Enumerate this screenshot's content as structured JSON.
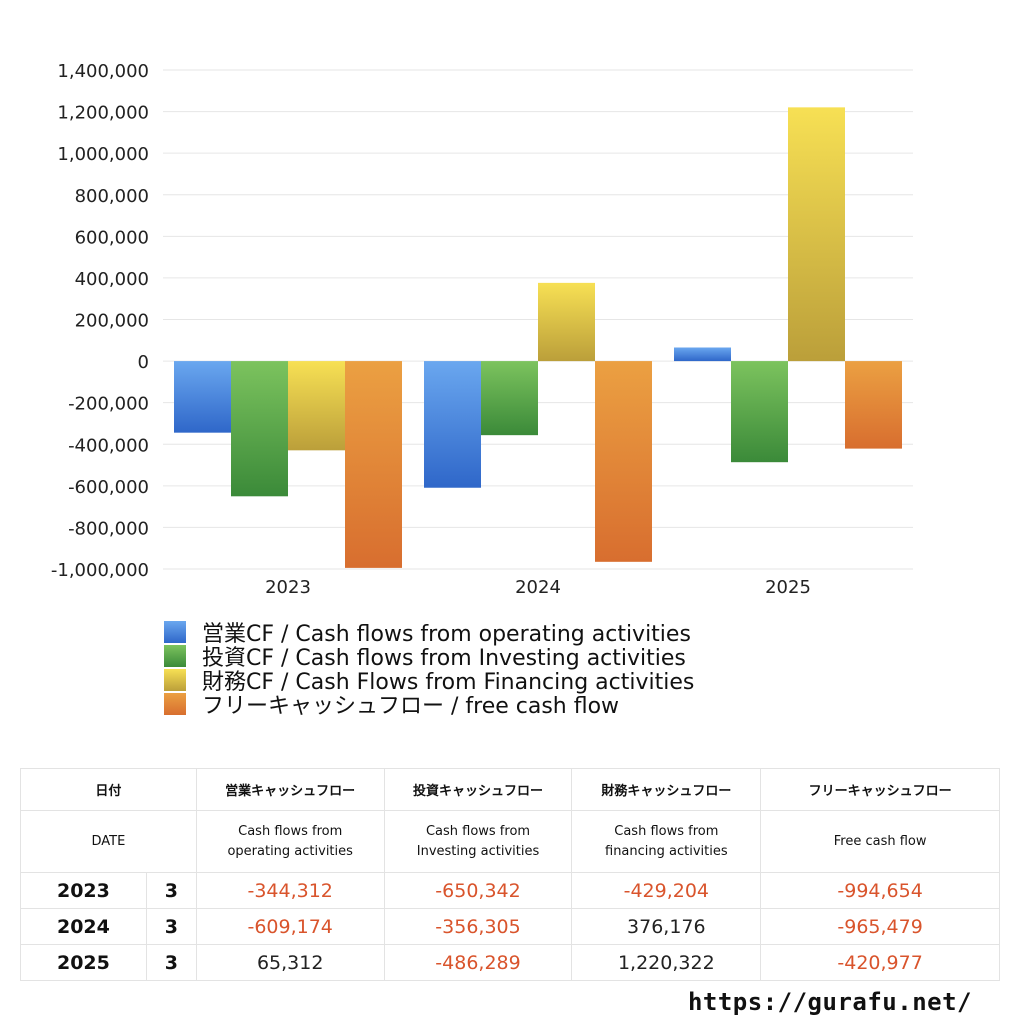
{
  "chart_data": {
    "type": "bar",
    "categories": [
      "2023",
      "2024",
      "2025"
    ],
    "series": [
      {
        "name": "営業CF / Cash flows from operating activities",
        "values": [
          -344312,
          -609174,
          65312
        ],
        "color_top": "#6aa7ef",
        "color_bottom": "#2f67c9"
      },
      {
        "name": "投資CF / Cash flows from Investing activities",
        "values": [
          -650342,
          -356305,
          -486289
        ],
        "color_top": "#7cc35e",
        "color_bottom": "#3b8a39"
      },
      {
        "name": "財務CF / Cash Flows from Financing activities",
        "values": [
          -429204,
          376176,
          1220322
        ],
        "color_top": "#f7e054",
        "color_bottom": "#bb9f3a"
      },
      {
        "name": "フリーキャッシュフロー / free cash flow",
        "values": [
          -994654,
          -965479,
          -420977
        ],
        "color_top": "#eba042",
        "color_bottom": "#d86e2f"
      }
    ],
    "ylim": [
      -1000000,
      1400000
    ],
    "yticks": [
      "1,400,000",
      "1,200,000",
      "1,000,000",
      "800,000",
      "600,000",
      "400,000",
      "200,000",
      "0",
      "-200,000",
      "-400,000",
      "-600,000",
      "-800,000",
      "-1,000,000"
    ],
    "ytick_values": [
      1400000,
      1200000,
      1000000,
      800000,
      600000,
      400000,
      200000,
      0,
      -200000,
      -400000,
      -600000,
      -800000,
      -1000000
    ],
    "grid": true,
    "legend_position": "bottom"
  },
  "table": {
    "header1": [
      "日付",
      "営業キャッシュフロー",
      "投資キャッシュフロー",
      "財務キャッシュフロー",
      "フリーキャッシュフロー"
    ],
    "header2": {
      "date": "DATE",
      "op_line1": "Cash flows from",
      "op_line2": "operating activities",
      "inv_line1": "Cash flows from",
      "inv_line2": "Investing activities",
      "fin_line1": "Cash flows from",
      "fin_line2": "financing activities",
      "free": "Free cash flow"
    },
    "rows": [
      {
        "year": "2023",
        "month": "3",
        "op": "-344,312",
        "inv": "-650,342",
        "fin": "-429,204",
        "free": "-994,654"
      },
      {
        "year": "2024",
        "month": "3",
        "op": "-609,174",
        "inv": "-356,305",
        "fin": "376,176",
        "free": "-965,479"
      },
      {
        "year": "2025",
        "month": "3",
        "op": "65,312",
        "inv": "-486,289",
        "fin": "1,220,322",
        "free": "-420,977"
      }
    ]
  },
  "footer": {
    "url": "https://gurafu.net/"
  }
}
